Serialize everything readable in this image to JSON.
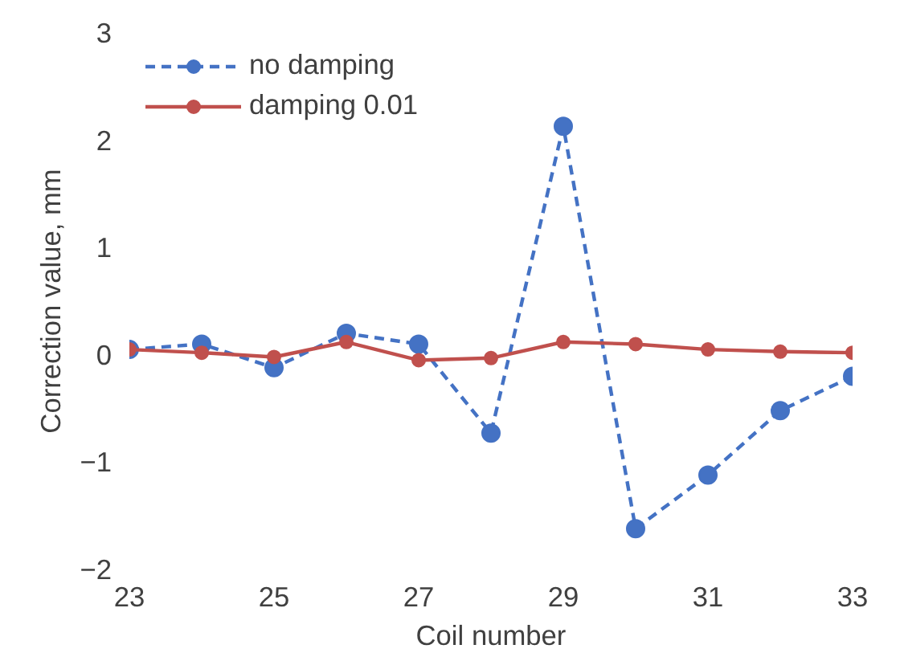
{
  "chart_data": {
    "type": "line",
    "xlabel": "Coil number",
    "ylabel": "Correction value, mm",
    "x": [
      23,
      24,
      25,
      26,
      27,
      28,
      29,
      30,
      31,
      32,
      33
    ],
    "series": [
      {
        "name": "no damping",
        "color": "#4472c4",
        "line_style": "dashed",
        "values": [
          0.05,
          0.1,
          -0.12,
          0.2,
          0.1,
          -0.73,
          2.13,
          -1.62,
          -1.12,
          -0.52,
          -0.2
        ]
      },
      {
        "name": "damping 0.01",
        "color": "#c0504d",
        "line_style": "solid",
        "values": [
          0.05,
          0.02,
          -0.02,
          0.12,
          -0.05,
          -0.03,
          0.12,
          0.1,
          0.05,
          0.03,
          0.02
        ]
      }
    ],
    "marker": "circle",
    "xlim": [
      23,
      33
    ],
    "xticks": [
      23,
      25,
      27,
      29,
      31,
      33
    ],
    "ylim": [
      -2,
      3
    ],
    "yticks": [
      -2,
      -1,
      0,
      1,
      2,
      3
    ],
    "grid": false,
    "legend": "top left"
  }
}
